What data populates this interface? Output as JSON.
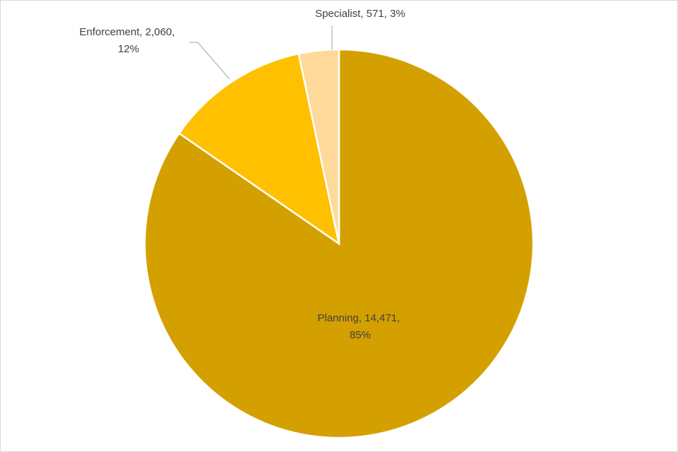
{
  "chart_data": {
    "type": "pie",
    "categories": [
      "Planning",
      "Enforcement",
      "Specialist"
    ],
    "values": [
      14471,
      2060,
      571
    ],
    "value_labels": [
      "14,471",
      "2,060",
      "571"
    ],
    "percentages": [
      85,
      12,
      3
    ],
    "percent_labels": [
      "85%",
      "12%",
      "3%"
    ],
    "label_separator": ", ",
    "colors": [
      "#d4a000",
      "#ffc000",
      "#ffd99a"
    ],
    "start_angle": 0,
    "direction": "clockwise"
  }
}
